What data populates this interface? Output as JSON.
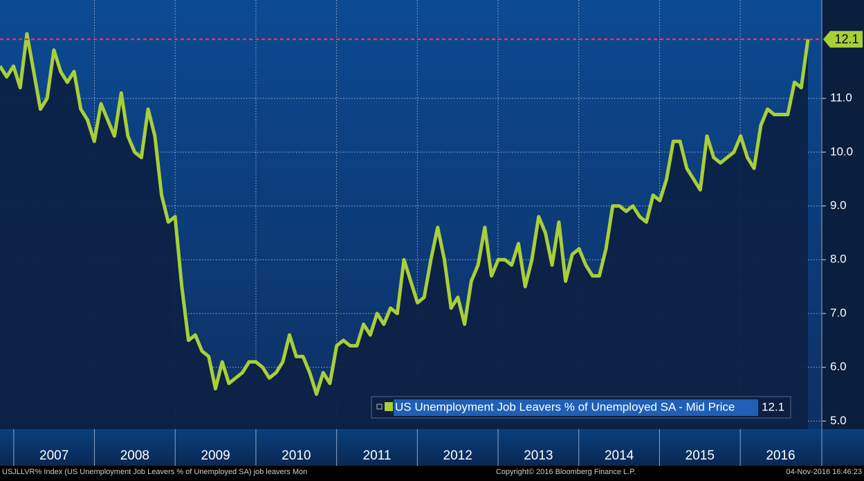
{
  "chart_data": {
    "type": "line",
    "series": [
      {
        "name": "US Unemployment Job Leavers % of Unemployed SA - Mid Price",
        "color": "#a8cf38",
        "values": [
          11.6,
          11.4,
          11.6,
          11.2,
          12.2,
          11.5,
          10.8,
          11.0,
          11.9,
          11.5,
          11.3,
          11.5,
          10.8,
          10.6,
          10.2,
          10.9,
          10.6,
          10.3,
          11.1,
          10.3,
          10.0,
          9.9,
          10.8,
          10.3,
          9.2,
          8.7,
          8.8,
          7.5,
          6.5,
          6.6,
          6.3,
          6.2,
          5.6,
          6.1,
          5.7,
          5.8,
          5.9,
          6.1,
          6.1,
          6.0,
          5.8,
          5.9,
          6.1,
          6.6,
          6.2,
          6.2,
          5.9,
          5.5,
          5.9,
          5.7,
          6.4,
          6.5,
          6.4,
          6.4,
          6.8,
          6.6,
          7.0,
          6.8,
          7.1,
          7.0,
          8.0,
          7.6,
          7.2,
          7.3,
          8.0,
          8.6,
          8.0,
          7.1,
          7.3,
          6.8,
          7.6,
          7.9,
          8.6,
          7.7,
          8.0,
          8.0,
          7.9,
          8.3,
          7.5,
          8.0,
          8.8,
          8.5,
          7.9,
          8.7,
          7.6,
          8.1,
          8.2,
          7.9,
          7.7,
          7.7,
          8.2,
          9.0,
          9.0,
          8.9,
          9.0,
          8.8,
          8.7,
          9.2,
          9.1,
          9.5,
          10.2,
          10.2,
          9.7,
          9.5,
          9.3,
          10.3,
          9.9,
          9.8,
          9.9,
          10.0,
          10.3,
          9.9,
          9.7,
          10.5,
          10.8,
          10.7,
          10.7,
          10.7,
          11.3,
          11.2,
          12.1
        ]
      }
    ],
    "ylim": [
      4.85,
      12.83
    ],
    "yticks": [
      {
        "value": 5,
        "label": "5.0"
      },
      {
        "value": 6,
        "label": "6.0"
      },
      {
        "value": 7,
        "label": "7.0"
      },
      {
        "value": 8,
        "label": "8.0"
      },
      {
        "value": 9,
        "label": "9.0"
      },
      {
        "value": 10,
        "label": "10.0"
      },
      {
        "value": 11,
        "label": "11.0"
      }
    ],
    "xlim": [
      2006.83,
      2017.01
    ],
    "xticks": [
      2007,
      2008,
      2009,
      2010,
      2011,
      2012,
      2013,
      2014,
      2015,
      2016
    ],
    "grid": true,
    "footer": {
      "left": "USJLLVR% Index (US Unemployment Job Leavers % of Unemployed SA) job leavers  Mon",
      "center": "Copyright© 2016 Bloomberg Finance L.P.",
      "right": "04-Nov-2016 16:46:23"
    }
  }
}
